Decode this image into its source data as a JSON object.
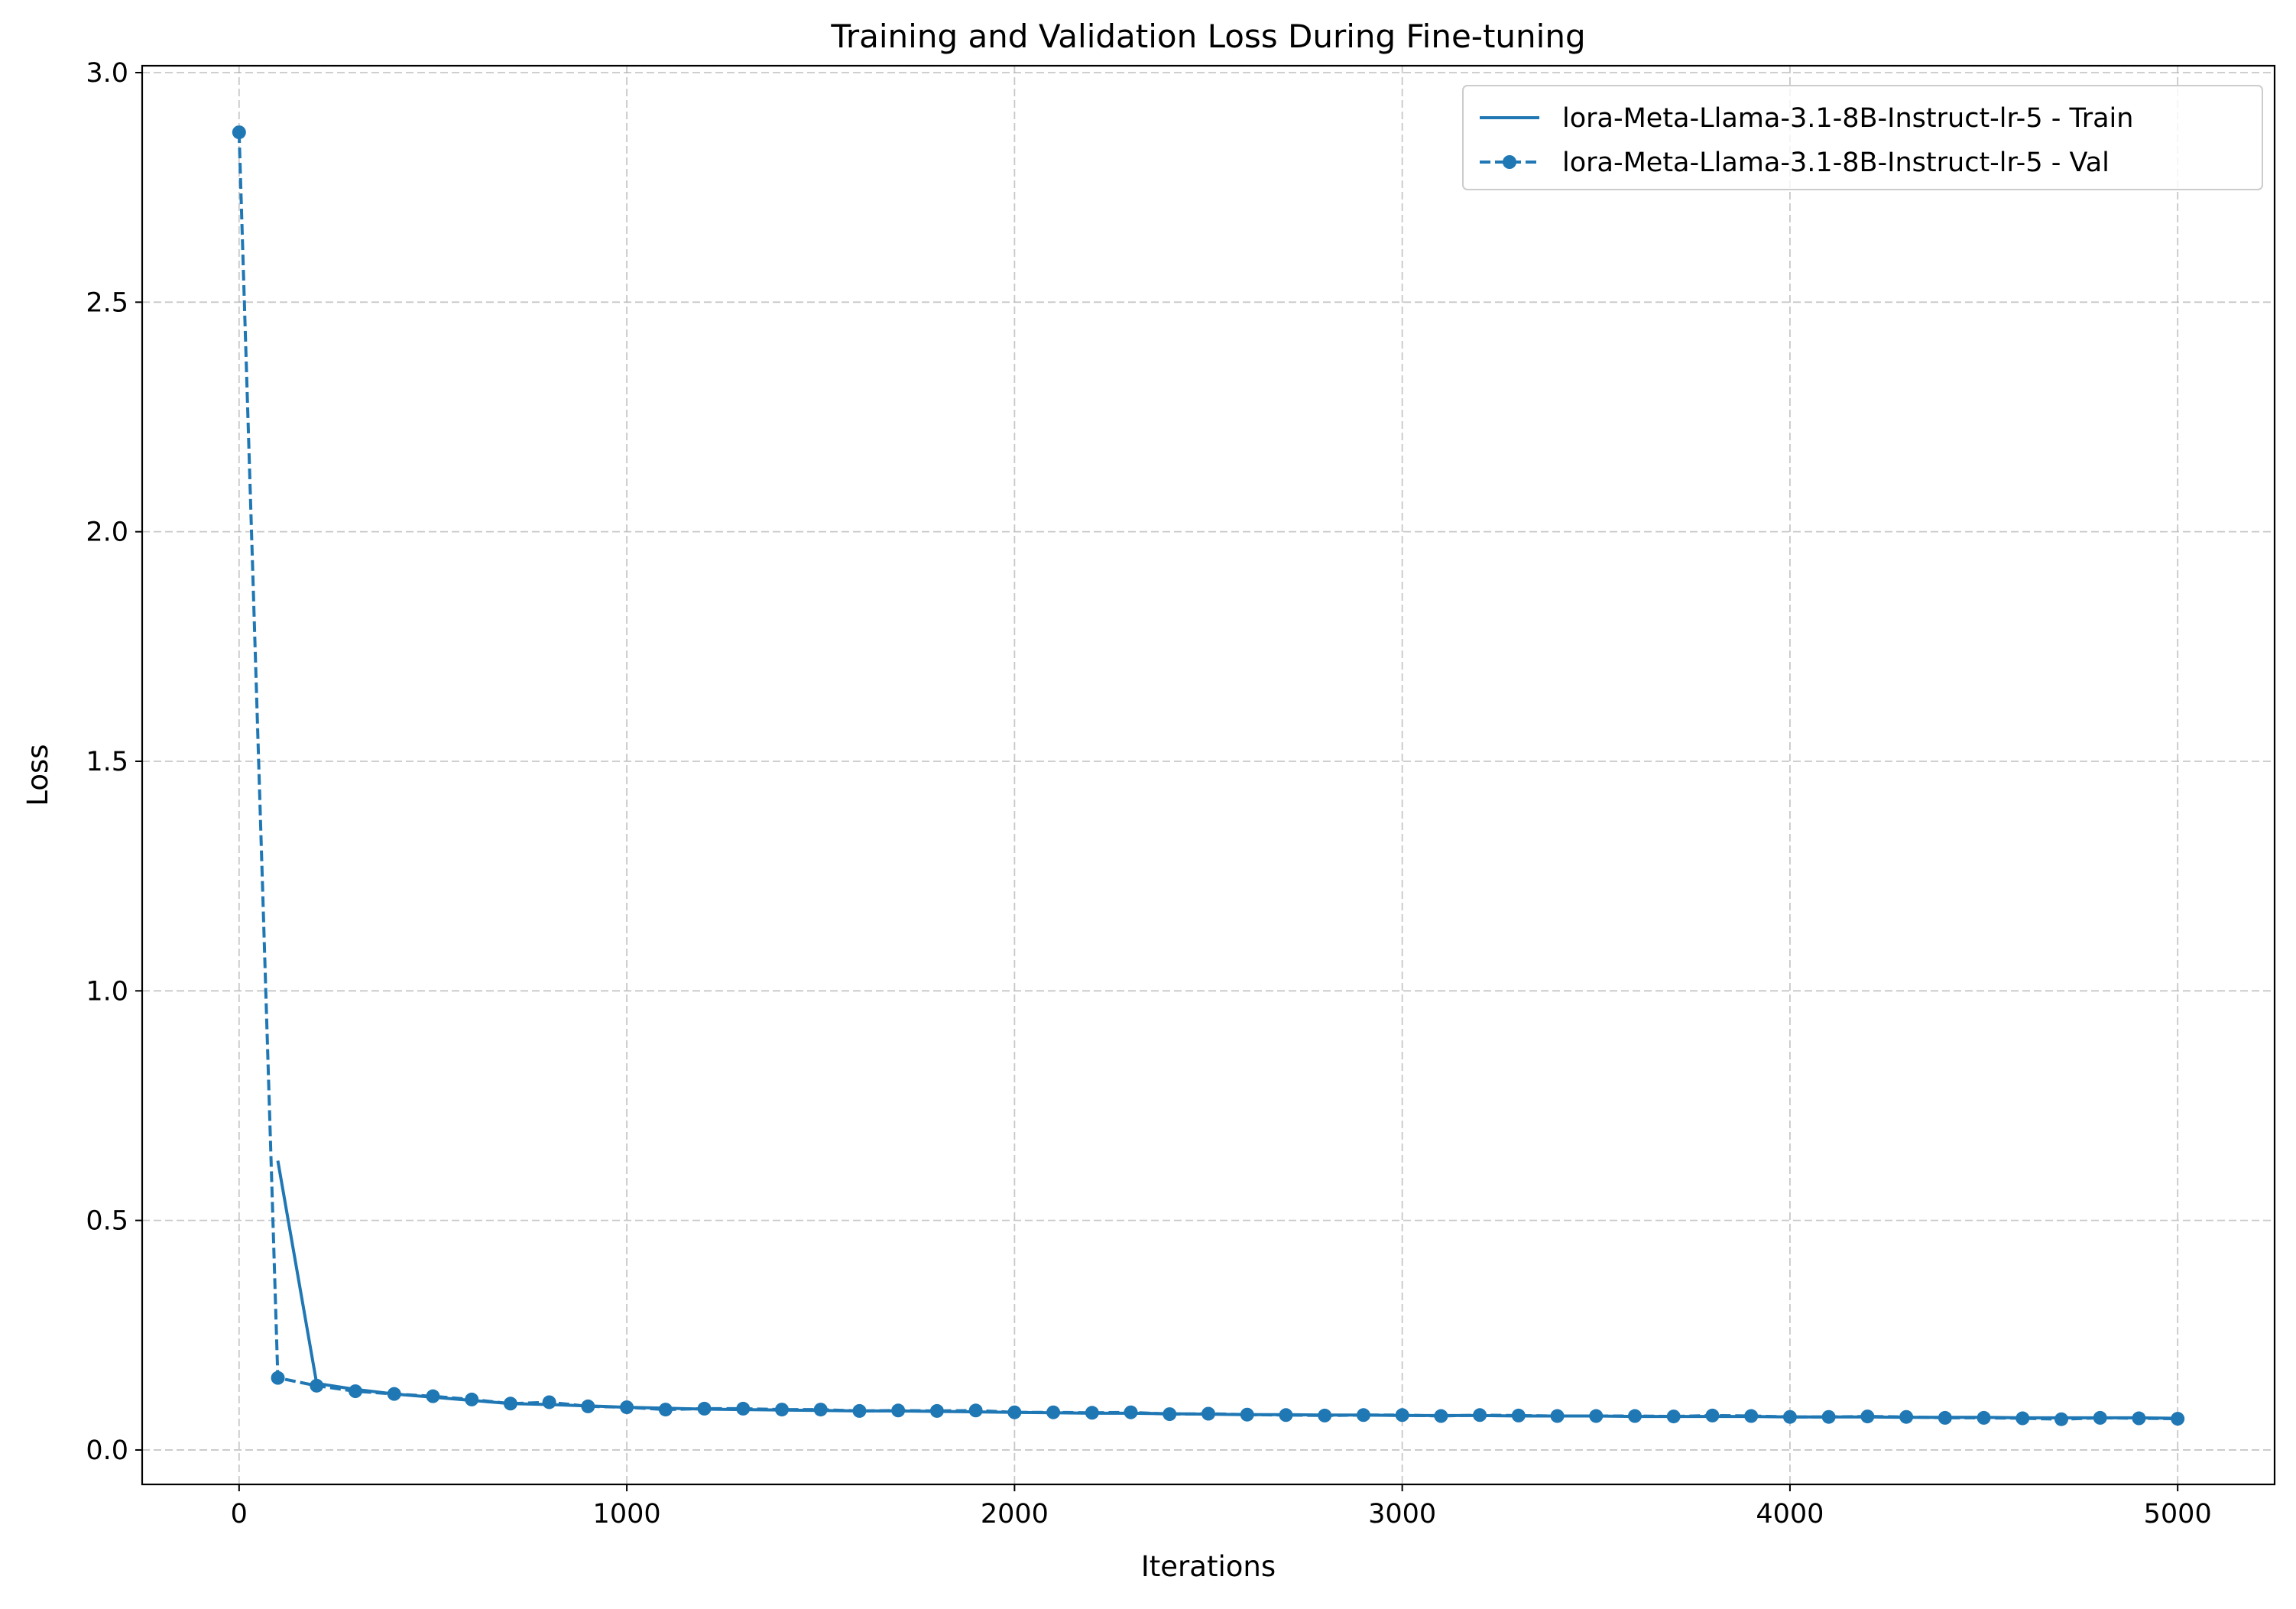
{
  "chart_data": {
    "type": "line",
    "title": "Training and Validation Loss During Fine-tuning",
    "xlabel": "Iterations",
    "ylabel": "Loss",
    "xlim": [
      -250,
      5250
    ],
    "ylim": [
      -0.075,
      3.015
    ],
    "xticks": [
      0,
      1000,
      2000,
      3000,
      4000,
      5000
    ],
    "xtick_labels": [
      "0",
      "1000",
      "2000",
      "3000",
      "4000",
      "5000"
    ],
    "yticks": [
      0.0,
      0.5,
      1.0,
      1.5,
      2.0,
      2.5,
      3.0
    ],
    "ytick_labels": [
      "0.0",
      "0.5",
      "1.0",
      "1.5",
      "2.0",
      "2.5",
      "3.0"
    ],
    "grid": true,
    "legend_position": "top-right",
    "color": "#1f77b4",
    "series": [
      {
        "name": "lora-Meta-Llama-3.1-8B-Instruct-lr-5 - Train",
        "style": "solid",
        "marker": "none",
        "x": [
          100,
          200,
          300,
          400,
          500,
          600,
          700,
          800,
          900,
          1000,
          1100,
          1200,
          1300,
          1400,
          1500,
          1600,
          1700,
          1800,
          1900,
          2000,
          2100,
          2200,
          2300,
          2400,
          2500,
          2600,
          2700,
          2800,
          2900,
          3000,
          3100,
          3200,
          3300,
          3400,
          3500,
          3600,
          3700,
          3800,
          3900,
          4000,
          4100,
          4200,
          4300,
          4400,
          4500,
          4600,
          4700,
          4800,
          4900,
          5000
        ],
        "y": [
          0.63,
          0.145,
          0.132,
          0.122,
          0.115,
          0.108,
          0.101,
          0.099,
          0.096,
          0.093,
          0.091,
          0.089,
          0.088,
          0.087,
          0.086,
          0.085,
          0.085,
          0.084,
          0.083,
          0.082,
          0.081,
          0.08,
          0.08,
          0.079,
          0.078,
          0.077,
          0.077,
          0.076,
          0.076,
          0.075,
          0.075,
          0.075,
          0.074,
          0.074,
          0.074,
          0.073,
          0.073,
          0.073,
          0.073,
          0.072,
          0.072,
          0.072,
          0.071,
          0.071,
          0.071,
          0.07,
          0.07,
          0.07,
          0.07,
          0.069
        ]
      },
      {
        "name": "lora-Meta-Llama-3.1-8B-Instruct-lr-5 - Val",
        "style": "dashed",
        "marker": "circle",
        "x": [
          0,
          100,
          200,
          300,
          400,
          500,
          600,
          700,
          800,
          900,
          1000,
          1100,
          1200,
          1300,
          1400,
          1500,
          1600,
          1700,
          1800,
          1900,
          2000,
          2100,
          2200,
          2300,
          2400,
          2500,
          2600,
          2700,
          2800,
          2900,
          3000,
          3100,
          3200,
          3300,
          3400,
          3500,
          3600,
          3700,
          3800,
          3900,
          4000,
          4100,
          4200,
          4300,
          4400,
          4500,
          4600,
          4700,
          4800,
          4900,
          5000
        ],
        "y": [
          2.87,
          0.157,
          0.14,
          0.128,
          0.122,
          0.117,
          0.11,
          0.101,
          0.104,
          0.095,
          0.093,
          0.088,
          0.09,
          0.09,
          0.088,
          0.088,
          0.085,
          0.086,
          0.085,
          0.086,
          0.082,
          0.082,
          0.081,
          0.082,
          0.078,
          0.079,
          0.077,
          0.076,
          0.075,
          0.076,
          0.076,
          0.074,
          0.076,
          0.075,
          0.074,
          0.074,
          0.074,
          0.073,
          0.075,
          0.074,
          0.072,
          0.072,
          0.073,
          0.072,
          0.07,
          0.07,
          0.069,
          0.067,
          0.07,
          0.069,
          0.068
        ]
      }
    ]
  }
}
